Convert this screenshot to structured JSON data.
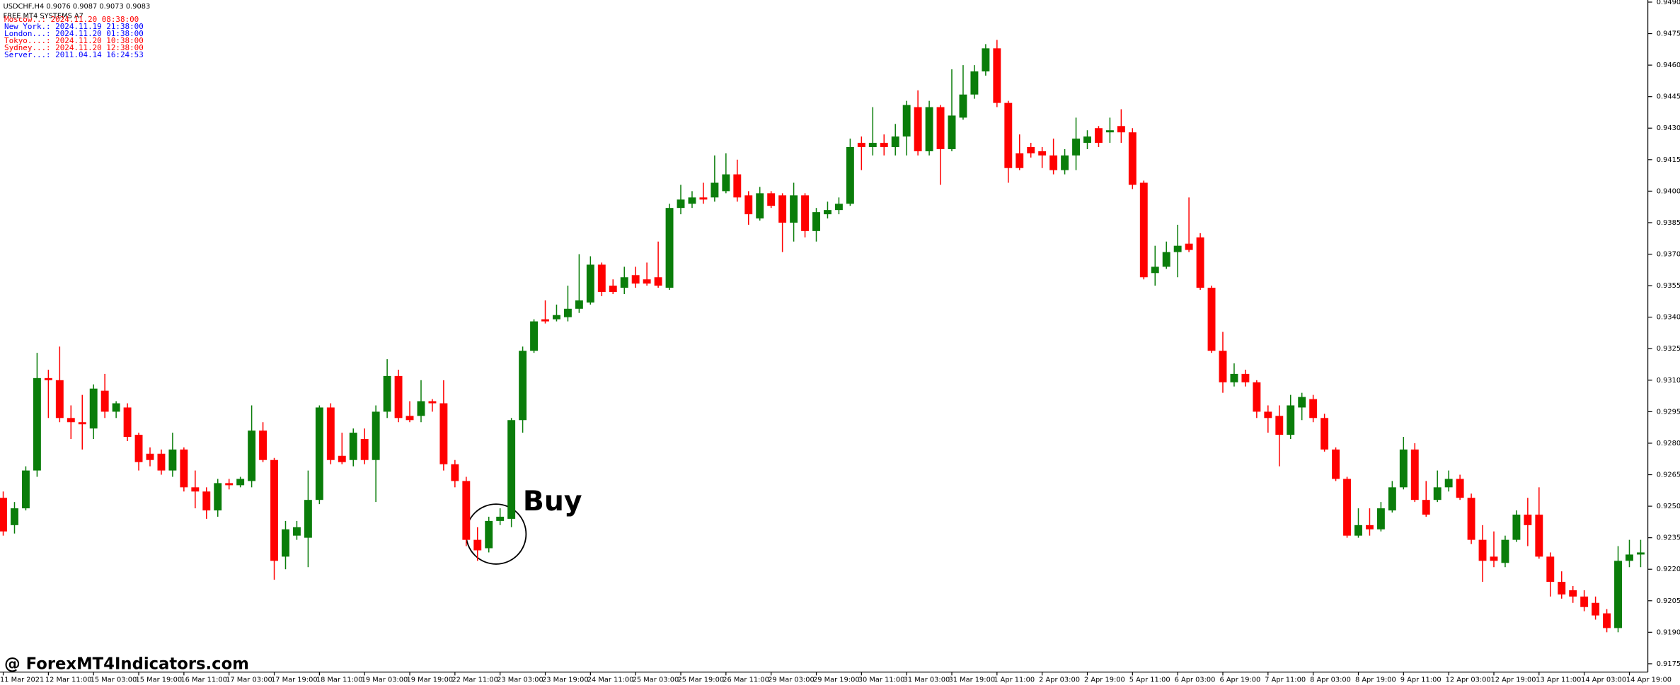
{
  "chart_data": {
    "type": "candlestick",
    "title": "USDCHF,H4  0.9076 0.9087 0.9073 0.9083",
    "subtitle": "FREE MT4 SYSTEMS A7",
    "annotation": "Buy",
    "up_color": "#0a7d0a",
    "down_color": "#ff0000",
    "clocks": [
      {
        "text": "Moscow..: 2024.11.20 08:38:00",
        "color": "#ff0000"
      },
      {
        "text": "New York.: 2024.11.19 21:38:00",
        "color": "#0000ff"
      },
      {
        "text": "London...: 2024.11.20 01:38:00",
        "color": "#0000ff"
      },
      {
        "text": "Tokyo....: 2024.11.20 10:38:00",
        "color": "#ff0000"
      },
      {
        "text": "Sydney...: 2024.11.20 12:38:00",
        "color": "#ff0000"
      },
      {
        "text": "Server...: 2011.04.14 16:24:53",
        "color": "#0000ff"
      }
    ],
    "categories": [
      "11 Mar 2021",
      null,
      null,
      null,
      "12 Mar 11:00",
      null,
      null,
      null,
      "15 Mar 03:00",
      null,
      null,
      null,
      "15 Mar 19:00",
      null,
      null,
      null,
      "16 Mar 11:00",
      null,
      null,
      null,
      "17 Mar 03:00",
      null,
      null,
      null,
      "17 Mar 19:00",
      null,
      null,
      null,
      "18 Mar 11:00",
      null,
      null,
      null,
      "19 Mar 03:00",
      null,
      null,
      null,
      "19 Mar 19:00",
      null,
      null,
      null,
      "22 Mar 11:00",
      null,
      null,
      null,
      "23 Mar 03:00",
      null,
      null,
      null,
      "23 Mar 19:00",
      null,
      null,
      null,
      "24 Mar 11:00",
      null,
      null,
      null,
      "25 Mar 03:00",
      null,
      null,
      null,
      "25 Mar 19:00",
      null,
      null,
      null,
      "26 Mar 11:00",
      null,
      null,
      null,
      "29 Mar 03:00",
      null,
      null,
      null,
      "29 Mar 19:00",
      null,
      null,
      null,
      "30 Mar 11:00",
      null,
      null,
      null,
      "31 Mar 03:00",
      null,
      null,
      null,
      "31 Mar 19:00",
      null,
      null,
      null,
      "1 Apr 11:00",
      null,
      null,
      null,
      "2 Apr 03:00",
      null,
      null,
      null,
      "2 Apr 19:00",
      null,
      null,
      null,
      "5 Apr 11:00",
      null,
      null,
      null,
      "6 Apr 03:00",
      null,
      null,
      null,
      "6 Apr 19:00",
      null,
      null,
      null,
      "7 Apr 11:00",
      null,
      null,
      null,
      "8 Apr 03:00",
      null,
      null,
      null,
      "8 Apr 19:00",
      null,
      null,
      null,
      "9 Apr 11:00",
      null,
      null,
      null,
      "12 Apr 03:00",
      null,
      null,
      null,
      "12 Apr 19:00",
      null,
      null,
      null,
      "13 Apr 11:00",
      null,
      null,
      null,
      "14 Apr 03:00",
      null,
      null,
      null,
      "14 Apr 19:00",
      null
    ],
    "open": [
      0.9254,
      0.9241,
      0.9249,
      0.9267,
      0.9311,
      0.931,
      0.9292,
      0.929,
      0.9287,
      0.9305,
      0.9295,
      0.9297,
      0.9284,
      0.9275,
      0.9275,
      0.9267,
      0.9277,
      0.9259,
      0.9257,
      0.9248,
      0.9261,
      0.926,
      0.9262,
      0.9286,
      0.9272,
      0.9226,
      0.9236,
      0.9235,
      0.9253,
      0.9297,
      0.9274,
      0.9272,
      0.9282,
      0.9272,
      0.9295,
      0.9312,
      0.9293,
      0.9293,
      0.93,
      0.9299,
      0.927,
      0.9262,
      0.9234,
      0.923,
      0.9243,
      0.9244,
      0.9291,
      0.9324,
      0.9339,
      0.9339,
      0.934,
      0.9344,
      0.9347,
      0.9365,
      0.9355,
      0.9354,
      0.936,
      0.9358,
      0.9359,
      0.9354,
      0.9392,
      0.9394,
      0.9397,
      0.9397,
      0.94,
      0.9408,
      0.9398,
      0.9387,
      0.9399,
      0.9398,
      0.9385,
      0.9398,
      0.9381,
      0.9389,
      0.9391,
      0.9394,
      0.9423,
      0.9421,
      0.9423,
      0.9421,
      0.9426,
      0.944,
      0.9419,
      0.944,
      0.942,
      0.9435,
      0.9446,
      0.9457,
      0.9468,
      0.9442,
      0.9418,
      0.9421,
      0.9419,
      0.9417,
      0.941,
      0.9417,
      0.9423,
      0.943,
      0.9428,
      0.9431,
      0.9428,
      0.9404,
      0.9361,
      0.9364,
      0.9371,
      0.9375,
      0.9378,
      0.9354,
      0.9324,
      0.9309,
      0.9313,
      0.9309,
      0.9295,
      0.9293,
      0.9284,
      0.9297,
      0.9301,
      0.9292,
      0.9277,
      0.9263,
      0.9236,
      0.9241,
      0.9239,
      0.9248,
      0.9259,
      0.9277,
      0.9253,
      0.9253,
      0.9259,
      0.9263,
      0.9254,
      0.9234,
      0.9226,
      0.9223,
      0.9234,
      0.9246,
      0.9246,
      0.9226,
      0.9214,
      0.921,
      0.9207,
      0.9204,
      0.9199,
      0.9192,
      0.9224,
      0.9227
    ],
    "high": [
      0.9257,
      0.9252,
      0.9269,
      0.9323,
      0.9315,
      0.9326,
      0.9298,
      0.9303,
      0.9308,
      0.9313,
      0.93,
      0.9299,
      0.9285,
      0.9278,
      0.9277,
      0.9285,
      0.9278,
      0.9267,
      0.9259,
      0.9263,
      0.9263,
      0.9264,
      0.9298,
      0.929,
      0.9273,
      0.9243,
      0.9243,
      0.9267,
      0.9298,
      0.9299,
      0.9285,
      0.9287,
      0.9287,
      0.9298,
      0.932,
      0.9315,
      0.93,
      0.931,
      0.9301,
      0.931,
      0.9272,
      0.9264,
      0.924,
      0.9245,
      0.9249,
      0.9292,
      0.9326,
      0.9339,
      0.9348,
      0.9346,
      0.9355,
      0.937,
      0.9369,
      0.9366,
      0.9358,
      0.9364,
      0.9364,
      0.9366,
      0.9376,
      0.9394,
      0.9403,
      0.94,
      0.9404,
      0.9417,
      0.9418,
      0.9415,
      0.94,
      0.9402,
      0.94,
      0.9399,
      0.9404,
      0.9399,
      0.9392,
      0.9395,
      0.9397,
      0.9425,
      0.9426,
      0.944,
      0.9427,
      0.9432,
      0.9443,
      0.9448,
      0.9443,
      0.9441,
      0.9458,
      0.946,
      0.946,
      0.947,
      0.9472,
      0.9443,
      0.9427,
      0.9423,
      0.9421,
      0.9425,
      0.942,
      0.9435,
      0.9429,
      0.9431,
      0.9435,
      0.9439,
      0.943,
      0.9405,
      0.9374,
      0.9376,
      0.9384,
      0.9397,
      0.938,
      0.9355,
      0.9333,
      0.9318,
      0.9315,
      0.931,
      0.9298,
      0.9298,
      0.9303,
      0.9304,
      0.9303,
      0.9294,
      0.9278,
      0.9264,
      0.9249,
      0.9249,
      0.9252,
      0.9262,
      0.9283,
      0.928,
      0.9262,
      0.9267,
      0.9267,
      0.9265,
      0.9256,
      0.9241,
      0.9238,
      0.9236,
      0.9248,
      0.9254,
      0.9259,
      0.9228,
      0.9219,
      0.9212,
      0.921,
      0.9207,
      0.9201,
      0.9231,
      0.9234,
      0.9234
    ],
    "low": [
      0.9236,
      0.9237,
      0.9248,
      0.9264,
      0.9292,
      0.929,
      0.9282,
      0.9277,
      0.9282,
      0.9292,
      0.9292,
      0.9281,
      0.9267,
      0.9269,
      0.9265,
      0.9264,
      0.9257,
      0.9249,
      0.9244,
      0.9245,
      0.9258,
      0.9259,
      0.9259,
      0.9271,
      0.9215,
      0.922,
      0.9234,
      0.9221,
      0.9251,
      0.927,
      0.927,
      0.9269,
      0.927,
      0.9252,
      0.9292,
      0.929,
      0.929,
      0.929,
      0.9295,
      0.9267,
      0.9259,
      0.9231,
      0.9224,
      0.9228,
      0.9241,
      0.924,
      0.9285,
      0.9323,
      0.9337,
      0.9338,
      0.9338,
      0.9342,
      0.9346,
      0.935,
      0.9351,
      0.9351,
      0.9354,
      0.9355,
      0.9354,
      0.9353,
      0.9389,
      0.9392,
      0.9394,
      0.9395,
      0.9399,
      0.9395,
      0.9384,
      0.9386,
      0.9392,
      0.9371,
      0.9376,
      0.9378,
      0.9376,
      0.9387,
      0.9389,
      0.9393,
      0.941,
      0.9417,
      0.9417,
      0.9417,
      0.9417,
      0.9417,
      0.9417,
      0.9403,
      0.9419,
      0.9434,
      0.9444,
      0.9455,
      0.944,
      0.9404,
      0.941,
      0.9416,
      0.9411,
      0.9408,
      0.9408,
      0.941,
      0.942,
      0.9421,
      0.9423,
      0.9423,
      0.9401,
      0.9358,
      0.9355,
      0.9363,
      0.9359,
      0.9371,
      0.9353,
      0.9323,
      0.9304,
      0.9307,
      0.9307,
      0.9292,
      0.9285,
      0.9269,
      0.9282,
      0.9291,
      0.929,
      0.9276,
      0.9262,
      0.9235,
      0.9235,
      0.9236,
      0.9238,
      0.9247,
      0.9258,
      0.9252,
      0.9245,
      0.9252,
      0.9257,
      0.9253,
      0.9232,
      0.9214,
      0.9221,
      0.9221,
      0.9233,
      0.9231,
      0.9225,
      0.9207,
      0.9206,
      0.9204,
      0.92,
      0.9196,
      0.919,
      0.919,
      0.9221,
      0.9221
    ],
    "close": [
      0.9238,
      0.9249,
      0.9267,
      0.9311,
      0.931,
      0.9292,
      0.929,
      0.9289,
      0.9306,
      0.9295,
      0.9299,
      0.9283,
      0.9271,
      0.9272,
      0.9267,
      0.9277,
      0.9259,
      0.9257,
      0.9248,
      0.9261,
      0.926,
      0.9263,
      0.9286,
      0.9272,
      0.9224,
      0.9239,
      0.924,
      0.9253,
      0.9297,
      0.9272,
      0.9271,
      0.9285,
      0.9272,
      0.9295,
      0.9312,
      0.9292,
      0.9291,
      0.93,
      0.9299,
      0.927,
      0.9262,
      0.9234,
      0.9229,
      0.9243,
      0.9245,
      0.9291,
      0.9324,
      0.9338,
      0.9338,
      0.9341,
      0.9344,
      0.9348,
      0.9365,
      0.9352,
      0.9352,
      0.9359,
      0.9356,
      0.9356,
      0.9355,
      0.9392,
      0.9396,
      0.9397,
      0.9396,
      0.9404,
      0.9408,
      0.9397,
      0.9389,
      0.9399,
      0.9393,
      0.9385,
      0.9398,
      0.9381,
      0.939,
      0.9391,
      0.9394,
      0.9421,
      0.9421,
      0.9423,
      0.9421,
      0.9426,
      0.9441,
      0.9419,
      0.944,
      0.942,
      0.9436,
      0.9446,
      0.9457,
      0.9468,
      0.9442,
      0.9411,
      0.9411,
      0.9418,
      0.9417,
      0.941,
      0.9417,
      0.9425,
      0.9426,
      0.9423,
      0.9429,
      0.9428,
      0.9403,
      0.9359,
      0.9364,
      0.9371,
      0.9374,
      0.9372,
      0.9354,
      0.9324,
      0.9309,
      0.9313,
      0.9309,
      0.9295,
      0.9292,
      0.9284,
      0.9298,
      0.9302,
      0.9292,
      0.9277,
      0.9263,
      0.9236,
      0.9241,
      0.9239,
      0.9249,
      0.9259,
      0.9277,
      0.9253,
      0.9246,
      0.9259,
      0.9263,
      0.9254,
      0.9234,
      0.9224,
      0.9224,
      0.9234,
      0.9246,
      0.9241,
      0.9226,
      0.9214,
      0.9208,
      0.9207,
      0.9202,
      0.9198,
      0.9192,
      0.9224,
      0.9227,
      0.9228
    ],
    "ylim": [
      0.9171,
      0.9491
    ],
    "yticks": [
      0.9175,
      {
        "value": 0.919,
        "label": "0.9190"
      },
      0.9205,
      {
        "value": 0.922,
        "label": "0.9220"
      },
      0.9235,
      {
        "value": 0.925,
        "label": "0.9250"
      },
      0.9265,
      {
        "value": 0.928,
        "label": "0.9280"
      },
      0.9295,
      {
        "value": 0.931,
        "label": "0.9310"
      },
      0.9325,
      {
        "value": 0.934,
        "label": "0.9340"
      },
      0.9355,
      {
        "value": 0.937,
        "label": "0.9370"
      },
      0.9385,
      {
        "value": 0.94,
        "label": "0.9400"
      },
      0.9415,
      {
        "value": 0.943,
        "label": "0.9430"
      },
      0.9445,
      {
        "value": 0.946,
        "label": "0.9460"
      },
      0.9475,
      {
        "value": 0.949,
        "label": "0.9490"
      }
    ],
    "watermark": "@ ForexMT4Indicators.com"
  }
}
